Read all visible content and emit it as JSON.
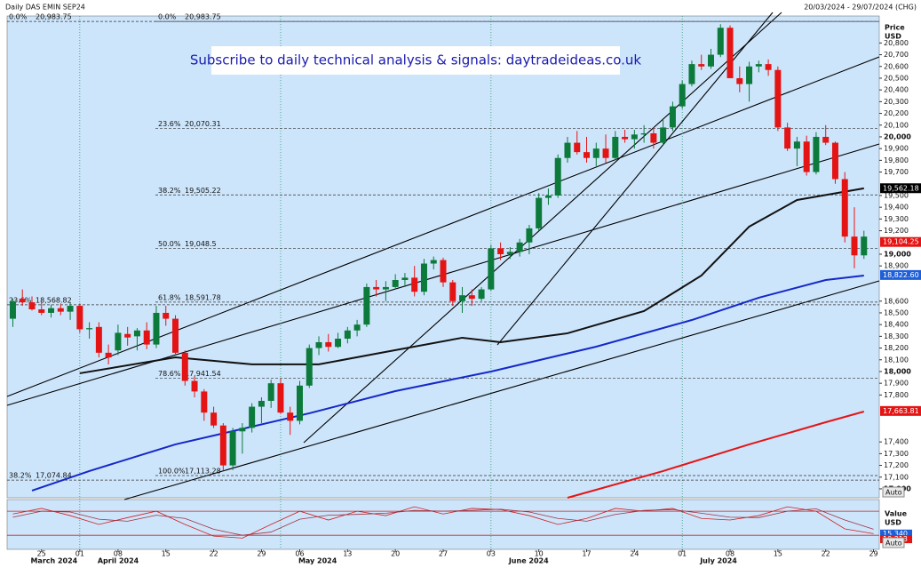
{
  "header": {
    "instrument": "Daily DAS EMIN SEP24",
    "range": "20/03/2024 - 29/07/2024 (CHG)"
  },
  "banner": "Subscribe to daily technical analysis & signals: daytradeideas.co.uk",
  "chart_data": {
    "type": "candlestick",
    "up_color": "#0c7a3b",
    "down_color": "#e51414",
    "xlim": [
      -0.6,
      90.6
    ],
    "ylim": [
      16924,
      21030
    ],
    "axis_title": [
      "Price",
      "USD"
    ],
    "auto_label": "Auto",
    "open": [
      18450,
      18620,
      18590,
      18530,
      18500,
      18540,
      18510,
      18560,
      18360,
      18380,
      18160,
      18180,
      18320,
      18300,
      18350,
      18230,
      18500,
      18450,
      18160,
      17920,
      17830,
      17650,
      17540,
      17200,
      17490,
      17520,
      17700,
      17750,
      17900,
      17650,
      17580,
      17880,
      18200,
      18250,
      18210,
      18280,
      18350,
      18400,
      18720,
      18700,
      18720,
      18780,
      18800,
      18680,
      18920,
      18950,
      18760,
      18600,
      18650,
      18620,
      18700,
      19050,
      19000,
      19020,
      19100,
      19220,
      19480,
      19500,
      19820,
      19950,
      19870,
      19820,
      19900,
      19820,
      20000,
      19980,
      20020,
      20030,
      19950,
      20080,
      20260,
      20450,
      20620,
      20600,
      20700,
      20930,
      20500,
      20450,
      20600,
      20620,
      20570,
      20080,
      19900,
      19960,
      19700,
      20000,
      19950,
      19640,
      19150,
      18990
    ],
    "high": [
      18620,
      18700,
      18640,
      18600,
      18570,
      18580,
      18590,
      18580,
      18420,
      18420,
      18230,
      18400,
      18380,
      18370,
      18420,
      18560,
      18560,
      18480,
      18180,
      17960,
      17850,
      17700,
      17560,
      17520,
      17560,
      17730,
      17780,
      17930,
      17940,
      17700,
      17920,
      18230,
      18300,
      18320,
      18330,
      18380,
      18440,
      18750,
      18780,
      18770,
      18830,
      18840,
      18900,
      18960,
      18980,
      18970,
      18780,
      18720,
      18700,
      18720,
      19080,
      19100,
      19060,
      19130,
      19250,
      19520,
      19560,
      19850,
      20000,
      20050,
      20000,
      19950,
      20020,
      20050,
      20060,
      20060,
      20100,
      20080,
      20150,
      20300,
      20480,
      20650,
      20700,
      20750,
      20960,
      20950,
      20600,
      20640,
      20650,
      20660,
      20600,
      20120,
      20000,
      20010,
      20040,
      20100,
      19960,
      19700,
      19400,
      19200
    ],
    "low": [
      18380,
      18560,
      18520,
      18480,
      18460,
      18480,
      18440,
      18330,
      18280,
      18120,
      18060,
      18140,
      18220,
      18180,
      18190,
      18200,
      18390,
      18150,
      17880,
      17780,
      17580,
      17520,
      17160,
      17160,
      17300,
      17480,
      17560,
      17690,
      17640,
      17460,
      17550,
      17860,
      18140,
      18170,
      18200,
      18240,
      18300,
      18380,
      18640,
      18600,
      18700,
      18720,
      18640,
      18650,
      18870,
      18720,
      18560,
      18500,
      18560,
      18600,
      18690,
      18950,
      18960,
      18980,
      19000,
      19200,
      19420,
      19480,
      19780,
      19850,
      19780,
      19750,
      19780,
      19800,
      19950,
      19900,
      19950,
      19900,
      19930,
      20050,
      20240,
      20430,
      20570,
      20580,
      20680,
      20500,
      20380,
      20300,
      20550,
      20520,
      20050,
      19880,
      19750,
      19670,
      19680,
      19930,
      19600,
      19100,
      18880,
      18960
    ],
    "close": [
      18600,
      18590,
      18530,
      18500,
      18540,
      18510,
      18560,
      18360,
      18370,
      18160,
      18120,
      18330,
      18290,
      18350,
      18230,
      18500,
      18450,
      18160,
      17920,
      17830,
      17650,
      17540,
      17200,
      17490,
      17520,
      17700,
      17750,
      17900,
      17650,
      17580,
      17880,
      18200,
      18250,
      18210,
      18280,
      18350,
      18400,
      18720,
      18700,
      18720,
      18780,
      18800,
      18680,
      18920,
      18950,
      18760,
      18600,
      18650,
      18620,
      18700,
      19050,
      19000,
      19020,
      19100,
      19220,
      19480,
      19500,
      19820,
      19950,
      19870,
      19820,
      19900,
      19820,
      20000,
      19980,
      20020,
      20030,
      19950,
      20080,
      20260,
      20450,
      20620,
      20600,
      20700,
      20930,
      20500,
      20450,
      20600,
      20620,
      20570,
      20080,
      19900,
      19960,
      19700,
      20000,
      19950,
      19640,
      19150,
      18990,
      19150
    ],
    "yticks": [
      {
        "value": 20800,
        "label": "20,800"
      },
      {
        "value": 20700,
        "label": "20,700"
      },
      {
        "value": 20600,
        "label": "20,600"
      },
      {
        "value": 20500,
        "label": "20,500"
      },
      {
        "value": 20400,
        "label": "20,400"
      },
      {
        "value": 20300,
        "label": "20,300"
      },
      {
        "value": 20200,
        "label": "20,200"
      },
      {
        "value": 20100,
        "label": "20,100"
      },
      {
        "value": 20000,
        "label": "20,000"
      },
      {
        "value": 19900,
        "label": "19,900"
      },
      {
        "value": 19800,
        "label": "19,800"
      },
      {
        "value": 19700,
        "label": "19,700"
      },
      {
        "value": 19500,
        "label": "19,500"
      },
      {
        "value": 19400,
        "label": "19,400"
      },
      {
        "value": 19300,
        "label": "19,300"
      },
      {
        "value": 19200,
        "label": "19,200"
      },
      {
        "value": 19000,
        "label": "19,000"
      },
      {
        "value": 18900,
        "label": "18,900"
      },
      {
        "value": 18600,
        "label": "18,600"
      },
      {
        "value": 18500,
        "label": "18,500"
      },
      {
        "value": 18400,
        "label": "18,400"
      },
      {
        "value": 18300,
        "label": "18,300"
      },
      {
        "value": 18200,
        "label": "18,200"
      },
      {
        "value": 18100,
        "label": "18,100"
      },
      {
        "value": 18000,
        "label": "18,000"
      },
      {
        "value": 17900,
        "label": "17,900"
      },
      {
        "value": 17800,
        "label": "17,800"
      },
      {
        "value": 17400,
        "label": "17,400"
      },
      {
        "value": 17300,
        "label": "17,300"
      },
      {
        "value": 17200,
        "label": "17,200"
      },
      {
        "value": 17100,
        "label": "17,100"
      },
      {
        "value": 17000,
        "label": "17,000"
      }
    ],
    "xticks": [
      {
        "value": 3,
        "label": "25"
      },
      {
        "value": 7,
        "label": "01"
      },
      {
        "value": 11,
        "label": "08"
      },
      {
        "value": 16,
        "label": "15"
      },
      {
        "value": 21,
        "label": "22"
      },
      {
        "value": 26,
        "label": "29"
      },
      {
        "value": 30,
        "label": "06"
      },
      {
        "value": 35,
        "label": "13"
      },
      {
        "value": 40,
        "label": "20"
      },
      {
        "value": 45,
        "label": "27"
      },
      {
        "value": 50,
        "label": "03"
      },
      {
        "value": 55,
        "label": "10"
      },
      {
        "value": 60,
        "label": "17"
      },
      {
        "value": 65,
        "label": "24"
      },
      {
        "value": 70,
        "label": "01"
      },
      {
        "value": 75,
        "label": "08"
      },
      {
        "value": 80,
        "label": "15"
      },
      {
        "value": 85,
        "label": "22"
      },
      {
        "value": 90,
        "label": "29"
      }
    ],
    "months": [
      {
        "value": 0,
        "label": "March 2024"
      },
      {
        "value": 7,
        "label": "April 2024"
      },
      {
        "value": 28,
        "label": "May 2024"
      },
      {
        "value": 50,
        "label": "June 2024"
      },
      {
        "value": 70,
        "label": "July 2024"
      }
    ],
    "fib_main": [
      {
        "level": "0.0%",
        "price": {
          "value": 20983.75,
          "label": "20,983.75"
        }
      },
      {
        "level": "23.6%",
        "price": {
          "value": 20070.31,
          "label": "20,070.31"
        }
      },
      {
        "level": "38.2%",
        "price": {
          "value": 19505.22,
          "label": "19,505.22"
        }
      },
      {
        "level": "50.0%",
        "price": {
          "value": 19048.5,
          "label": "19,048.5"
        }
      },
      {
        "level": "61.8%",
        "price": {
          "value": 18591.78,
          "label": "18,591.78"
        }
      },
      {
        "level": "78.6%",
        "price": {
          "value": 17941.54,
          "label": "17,941.54"
        }
      },
      {
        "level": "100.0%",
        "price": {
          "value": 17113.28,
          "label": "17,113.28"
        }
      }
    ],
    "fib_left": [
      {
        "level": "0.0%",
        "price": {
          "value": 20983.75,
          "label": "20,983.75"
        }
      },
      {
        "level": "23.6%",
        "price": {
          "value": 18568.82,
          "label": "18,568.82"
        }
      },
      {
        "level": "38.2%",
        "price": {
          "value": 17074.84,
          "label": "17,074.84"
        }
      }
    ],
    "ma_lines": [
      {
        "color": "#111111",
        "x": [
          7,
          17,
          25,
          32,
          38,
          47,
          51,
          58,
          66,
          72,
          77,
          82,
          89
        ],
        "values": [
          17985,
          18121,
          18061,
          18061,
          18152,
          18288,
          18250,
          18326,
          18515,
          18818,
          19235,
          19462,
          19561
        ]
      },
      {
        "color": "#1428c8",
        "x": [
          2,
          8,
          17,
          23,
          31,
          40,
          50,
          61,
          71,
          78,
          85,
          89
        ],
        "values": [
          16985,
          17152,
          17379,
          17492,
          17644,
          17833,
          18000,
          18212,
          18439,
          18629,
          18780,
          18818
        ]
      },
      {
        "color": "#e51414",
        "x": [
          58,
          68,
          77,
          85,
          89
        ],
        "values": [
          16924,
          17152,
          17379,
          17568,
          17659
        ]
      }
    ],
    "price_tags": [
      {
        "color": "#000000",
        "price": {
          "value": 19562.18,
          "label": "19,562.18"
        }
      },
      {
        "color": "#e51414",
        "price": {
          "value": 19104.25,
          "label": "19,104.25"
        }
      },
      {
        "color": "#1e5fd8",
        "price": {
          "value": 18822.6,
          "label": "18,822.60"
        }
      },
      {
        "color": "#e51414",
        "price": {
          "value": 17663.81,
          "label": "17,663.81"
        }
      }
    ],
    "oscillator": {
      "axis_title": [
        "Value",
        "USD"
      ],
      "ylim": [
        -15,
        109
      ],
      "levels": [
        80,
        20
      ],
      "x": [
        0,
        3,
        6,
        9,
        12,
        15,
        18,
        21,
        24,
        27,
        30,
        33,
        36,
        39,
        42,
        45,
        48,
        51,
        54,
        57,
        60,
        63,
        66,
        69,
        72,
        75,
        78,
        81,
        84,
        87,
        90
      ],
      "series": [
        {
          "color": "#d02020",
          "values": [
            73,
            87,
            69,
            47,
            64,
            80,
            47,
            18,
            13,
            47,
            80,
            58,
            80,
            69,
            91,
            73,
            87,
            84,
            69,
            47,
            62,
            87,
            80,
            87,
            62,
            58,
            69,
            91,
            80,
            36,
            24
          ]
        },
        {
          "color": "#a03040",
          "values": [
            65,
            80,
            78,
            60,
            55,
            70,
            62,
            35,
            20,
            28,
            60,
            70,
            72,
            75,
            82,
            80,
            82,
            85,
            78,
            62,
            55,
            72,
            82,
            84,
            75,
            65,
            64,
            80,
            86,
            58,
            35
          ]
        }
      ],
      "tags": [
        {
          "color": "#1e5fd8",
          "value": {
            "value": 15.34,
            "label": "15.340"
          }
        },
        {
          "color": "#e51414",
          "value": {
            "value": 10.313,
            "label": "10.313"
          }
        }
      ]
    }
  }
}
